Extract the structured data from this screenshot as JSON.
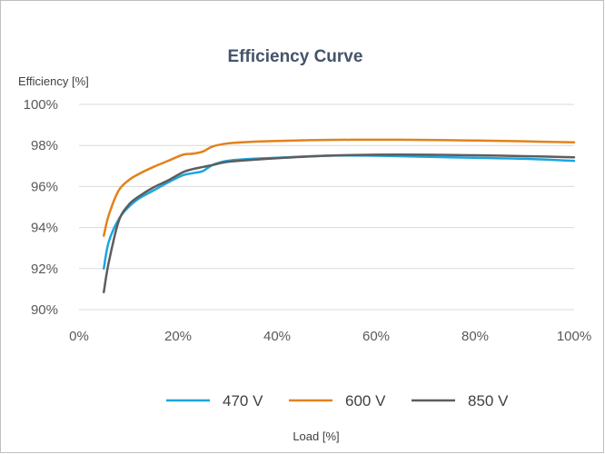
{
  "chart_data": {
    "type": "line",
    "title": "Efficiency Curve",
    "ylabel": "Efficiency [%]",
    "xlabel": "Load [%]",
    "xlim": [
      0,
      100
    ],
    "ylim": [
      90,
      100
    ],
    "x_ticks": [
      "0%",
      "20%",
      "40%",
      "60%",
      "80%",
      "100%"
    ],
    "y_ticks": [
      "90%",
      "92%",
      "94%",
      "96%",
      "98%",
      "100%"
    ],
    "grid": "horizontal",
    "legend_position": "bottom",
    "series": [
      {
        "name": "470 V",
        "color": "#1aa6e0",
        "x": [
          5,
          6,
          8,
          10,
          12,
          15,
          18,
          21,
          23,
          25,
          27,
          30,
          35,
          40,
          50,
          60,
          70,
          80,
          90,
          100
        ],
        "y": [
          92.0,
          93.3,
          94.4,
          95.0,
          95.4,
          95.8,
          96.2,
          96.55,
          96.65,
          96.75,
          97.05,
          97.25,
          97.35,
          97.4,
          97.5,
          97.5,
          97.45,
          97.4,
          97.35,
          97.25
        ]
      },
      {
        "name": "600 V",
        "color": "#e2821b",
        "x": [
          5,
          6,
          8,
          10,
          12,
          15,
          18,
          21,
          23,
          25,
          27,
          30,
          35,
          40,
          50,
          60,
          70,
          80,
          90,
          100
        ],
        "y": [
          93.6,
          94.6,
          95.8,
          96.3,
          96.6,
          96.95,
          97.25,
          97.55,
          97.6,
          97.7,
          97.95,
          98.1,
          98.18,
          98.22,
          98.27,
          98.28,
          98.27,
          98.24,
          98.2,
          98.15
        ]
      },
      {
        "name": "850 V",
        "color": "#5d5d5d",
        "x": [
          5,
          6,
          8,
          10,
          12,
          15,
          18,
          21,
          23,
          25,
          27,
          30,
          35,
          40,
          50,
          60,
          70,
          80,
          90,
          100
        ],
        "y": [
          90.85,
          92.3,
          94.3,
          95.1,
          95.5,
          95.95,
          96.3,
          96.7,
          96.85,
          96.95,
          97.05,
          97.2,
          97.3,
          97.38,
          97.5,
          97.55,
          97.55,
          97.52,
          97.48,
          97.42
        ]
      }
    ]
  }
}
